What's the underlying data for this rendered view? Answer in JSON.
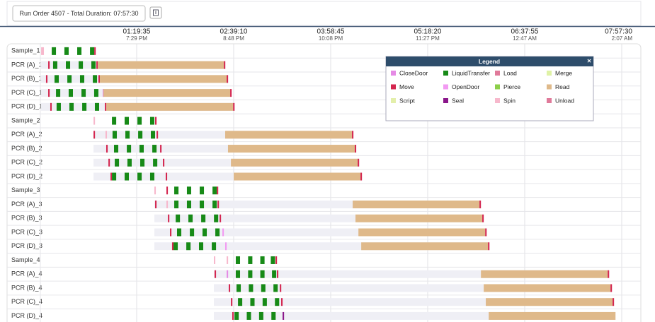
{
  "toolbar": {
    "run_button": "Run Order 4507 - Total Duration: 07:57:30"
  },
  "timeline": {
    "xlim": [
      0,
      477.5
    ],
    "xticks": [
      {
        "value": 79.58,
        "label": "01:19:35",
        "clock": "7:29 PM"
      },
      {
        "value": 159.17,
        "label": "02:39:10",
        "clock": "8:48 PM"
      },
      {
        "value": 238.75,
        "label": "03:58:45",
        "clock": "10:08 PM"
      },
      {
        "value": 318.33,
        "label": "05:18:20",
        "clock": "11:27 PM"
      },
      {
        "value": 397.92,
        "label": "06:37:55",
        "clock": "12:47 AM"
      },
      {
        "value": 477.5,
        "label": "07:57:30",
        "clock": "2:07 AM"
      }
    ],
    "rows": [
      {
        "label": "Sample_1",
        "segments": [
          [
            1.2,
            2.3,
            10
          ],
          [
            9.9,
            3.5,
            1
          ],
          [
            20.3,
            3.5,
            1
          ],
          [
            30.8,
            3.5,
            1
          ],
          [
            41.3,
            3.5,
            1
          ],
          [
            44.8,
            1.2,
            4
          ]
        ]
      },
      {
        "label": "PCR (A)_1",
        "span": [
          1.2,
          152.3
        ],
        "segments": [
          [
            7.0,
            1.2,
            4
          ],
          [
            11.0,
            3.5,
            1
          ],
          [
            21.5,
            3.5,
            1
          ],
          [
            32.0,
            3.5,
            1
          ],
          [
            42.4,
            3.5,
            1
          ],
          [
            46.5,
            1.2,
            4
          ],
          [
            47.7,
            103.4,
            7
          ],
          [
            151.1,
            1.2,
            4
          ]
        ]
      },
      {
        "label": "PCR (B)_1",
        "span": [
          1.2,
          154.6
        ],
        "segments": [
          [
            5.2,
            1.2,
            4
          ],
          [
            12.2,
            3.5,
            1
          ],
          [
            22.7,
            3.5,
            1
          ],
          [
            33.1,
            3.5,
            1
          ],
          [
            43.6,
            3.5,
            1
          ],
          [
            48.2,
            1.2,
            4
          ],
          [
            49.4,
            104,
            7
          ],
          [
            153.4,
            1.2,
            4
          ]
        ]
      },
      {
        "label": "PCR (C)_1",
        "span": [
          1.2,
          157.5
        ],
        "segments": [
          [
            7.0,
            1.2,
            4
          ],
          [
            13.4,
            3.5,
            1
          ],
          [
            23.8,
            3.5,
            1
          ],
          [
            34.3,
            3.5,
            1
          ],
          [
            44.7,
            3.5,
            1
          ],
          [
            51.7,
            1.2,
            0
          ],
          [
            52.3,
            104,
            7
          ],
          [
            156.3,
            1.2,
            4
          ]
        ]
      },
      {
        "label": "PCR (D)_1",
        "span": [
          1.2,
          159.9
        ],
        "segments": [
          [
            8.7,
            1.2,
            4
          ],
          [
            13.9,
            3.5,
            1
          ],
          [
            24.4,
            3.5,
            1
          ],
          [
            34.9,
            3.5,
            1
          ],
          [
            45.3,
            3.5,
            1
          ],
          [
            53.5,
            1.2,
            4
          ],
          [
            54.7,
            104,
            7
          ],
          [
            158.7,
            1.2,
            4
          ]
        ]
      },
      {
        "label": "Sample_2",
        "segments": [
          [
            44.2,
            1.2,
            10
          ],
          [
            59.3,
            3.5,
            1
          ],
          [
            69.7,
            3.5,
            1
          ],
          [
            80.2,
            3.5,
            1
          ],
          [
            90.6,
            3.5,
            1
          ],
          [
            94.7,
            1.2,
            4
          ]
        ]
      },
      {
        "label": "PCR (A)_2",
        "span": [
          44.2,
          257.4
        ],
        "segments": [
          [
            44.2,
            1.2,
            4
          ],
          [
            54.0,
            1.2,
            10
          ],
          [
            59.8,
            3.5,
            1
          ],
          [
            70.3,
            3.5,
            1
          ],
          [
            80.8,
            3.5,
            1
          ],
          [
            91.2,
            3.5,
            1
          ],
          [
            95.9,
            1.2,
            4
          ],
          [
            152.2,
            104,
            7
          ],
          [
            256.2,
            1.2,
            4
          ]
        ]
      },
      {
        "label": "PCR (B)_2",
        "span": [
          44.2,
          259.7
        ],
        "segments": [
          [
            54.6,
            1.2,
            4
          ],
          [
            61.0,
            3.5,
            1
          ],
          [
            71.5,
            3.5,
            1
          ],
          [
            81.9,
            3.5,
            1
          ],
          [
            92.4,
            3.5,
            1
          ],
          [
            98.8,
            1.2,
            4
          ],
          [
            154.5,
            104,
            7
          ],
          [
            258.5,
            1.2,
            4
          ]
        ]
      },
      {
        "label": "PCR (C)_2",
        "span": [
          44.2,
          262.1
        ],
        "segments": [
          [
            56.4,
            1.2,
            4
          ],
          [
            61.6,
            3.5,
            1
          ],
          [
            72.0,
            3.5,
            1
          ],
          [
            82.5,
            3.5,
            1
          ],
          [
            93.0,
            3.5,
            1
          ],
          [
            101.1,
            1.2,
            4
          ],
          [
            156.9,
            104,
            7
          ],
          [
            260.9,
            1.2,
            4
          ]
        ]
      },
      {
        "label": "PCR (D)_2",
        "span": [
          44.2,
          264.4
        ],
        "segments": [
          [
            58.1,
            1.2,
            4
          ],
          [
            59.3,
            3.5,
            1
          ],
          [
            69.7,
            3.5,
            1
          ],
          [
            80.2,
            3.5,
            1
          ],
          [
            90.6,
            3.5,
            1
          ],
          [
            103.4,
            1.2,
            4
          ],
          [
            159.2,
            104,
            7
          ],
          [
            263.2,
            1.2,
            4
          ]
        ]
      },
      {
        "label": "Sample_3",
        "segments": [
          [
            94.1,
            1.2,
            10
          ],
          [
            104.0,
            1.2,
            4
          ],
          [
            110.4,
            3.5,
            1
          ],
          [
            120.8,
            3.5,
            1
          ],
          [
            131.3,
            3.5,
            1
          ],
          [
            141.8,
            3.5,
            1
          ],
          [
            145.3,
            1.2,
            4
          ]
        ]
      },
      {
        "label": "PCR (A)_3",
        "span": [
          94.1,
          362.0
        ],
        "segments": [
          [
            94.7,
            1.2,
            4
          ],
          [
            104.0,
            1.2,
            10
          ],
          [
            110.4,
            3.5,
            1
          ],
          [
            120.8,
            3.5,
            1
          ],
          [
            131.3,
            3.5,
            1
          ],
          [
            141.8,
            3.5,
            1
          ],
          [
            145.9,
            1.2,
            4
          ],
          [
            256.8,
            104,
            7
          ],
          [
            360.8,
            1.2,
            4
          ]
        ]
      },
      {
        "label": "PCR (B)_3",
        "span": [
          94.1,
          364.3
        ],
        "segments": [
          [
            105.2,
            1.2,
            4
          ],
          [
            111.6,
            3.5,
            1
          ],
          [
            122.0,
            3.5,
            1
          ],
          [
            132.5,
            3.5,
            1
          ],
          [
            143.0,
            3.5,
            1
          ],
          [
            147.6,
            1.2,
            4
          ],
          [
            259.1,
            104,
            7
          ],
          [
            363.1,
            1.2,
            4
          ]
        ]
      },
      {
        "label": "PCR (C)_3",
        "span": [
          94.1,
          366.7
        ],
        "segments": [
          [
            106.9,
            1.2,
            4
          ],
          [
            112.7,
            3.5,
            1
          ],
          [
            123.2,
            3.5,
            1
          ],
          [
            133.6,
            3.5,
            1
          ],
          [
            144.1,
            3.5,
            1
          ],
          [
            149.9,
            1.2,
            5
          ],
          [
            261.5,
            104,
            7
          ],
          [
            365.5,
            1.2,
            4
          ]
        ]
      },
      {
        "label": "PCR (D)_3",
        "span": [
          94.1,
          369.0
        ],
        "segments": [
          [
            108.6,
            1.2,
            4
          ],
          [
            109.8,
            3.5,
            1
          ],
          [
            120.3,
            3.5,
            1
          ],
          [
            130.7,
            3.5,
            1
          ],
          [
            141.2,
            3.5,
            1
          ],
          [
            152.2,
            1.2,
            5
          ],
          [
            263.8,
            104,
            7
          ],
          [
            367.8,
            1.2,
            4
          ]
        ]
      },
      {
        "label": "Sample_4",
        "segments": [
          [
            142.9,
            1.2,
            10
          ],
          [
            153.4,
            1.2,
            10
          ],
          [
            160.9,
            3.5,
            1
          ],
          [
            171.0,
            3.5,
            1
          ],
          [
            181.0,
            3.5,
            1
          ],
          [
            189.6,
            3.5,
            1
          ],
          [
            193.5,
            1.2,
            4
          ]
        ]
      },
      {
        "label": "PCR (A)_4",
        "span": [
          142.9,
          467.2
        ],
        "segments": [
          [
            143.5,
            1.2,
            4
          ],
          [
            153.4,
            1.2,
            0
          ],
          [
            160.9,
            3.5,
            1
          ],
          [
            171.0,
            3.5,
            1
          ],
          [
            181.0,
            3.5,
            1
          ],
          [
            190.6,
            3.5,
            1
          ],
          [
            194.6,
            1.2,
            4
          ],
          [
            362.0,
            104,
            7
          ],
          [
            466.0,
            1.2,
            4
          ]
        ]
      },
      {
        "label": "PCR (B)_4",
        "span": [
          142.9,
          469.5
        ],
        "segments": [
          [
            155.1,
            1.2,
            4
          ],
          [
            161.5,
            3.5,
            1
          ],
          [
            171.6,
            3.5,
            1
          ],
          [
            181.7,
            3.5,
            1
          ],
          [
            191.8,
            3.5,
            1
          ],
          [
            197.0,
            1.2,
            4
          ],
          [
            364.3,
            104,
            7
          ],
          [
            468.3,
            1.2,
            4
          ]
        ]
      },
      {
        "label": "PCR (C)_4",
        "span": [
          142.9,
          471.2
        ],
        "segments": [
          [
            156.9,
            1.2,
            4
          ],
          [
            162.7,
            3.5,
            1
          ],
          [
            172.8,
            3.5,
            1
          ],
          [
            182.9,
            3.5,
            1
          ],
          [
            193.0,
            3.5,
            1
          ],
          [
            198.1,
            1.2,
            4
          ],
          [
            366.0,
            104,
            7
          ],
          [
            470.0,
            1.2,
            4
          ]
        ]
      },
      {
        "label": "PCR (D)_4",
        "span": [
          142.9,
          472.4
        ],
        "segments": [
          [
            158.0,
            1.2,
            4
          ],
          [
            159.8,
            3.5,
            1
          ],
          [
            169.9,
            3.5,
            1
          ],
          [
            180.0,
            3.5,
            1
          ],
          [
            190.1,
            3.5,
            1
          ],
          [
            199.3,
            1.2,
            9
          ],
          [
            368.4,
            104,
            7
          ]
        ]
      }
    ]
  },
  "legend": {
    "title": "Legend",
    "close": "×",
    "items": [
      {
        "name": "CloseDoor",
        "color": "#e58ae5"
      },
      {
        "name": "LiquidTransfer",
        "color": "#178a17"
      },
      {
        "name": "Load",
        "color": "#e07a9a"
      },
      {
        "name": "Merge",
        "color": "#dff2a6"
      },
      {
        "name": "Move",
        "color": "#d4264f"
      },
      {
        "name": "OpenDoor",
        "color": "#f29af2"
      },
      {
        "name": "Pierce",
        "color": "#8ccf4a"
      },
      {
        "name": "Read",
        "color": "#dfb98a"
      },
      {
        "name": "Script",
        "color": "#e3efaa"
      },
      {
        "name": "Seal",
        "color": "#8a168a"
      },
      {
        "name": "Spin",
        "color": "#f7b8cc"
      },
      {
        "name": "Unload",
        "color": "#e07a9a"
      }
    ]
  }
}
